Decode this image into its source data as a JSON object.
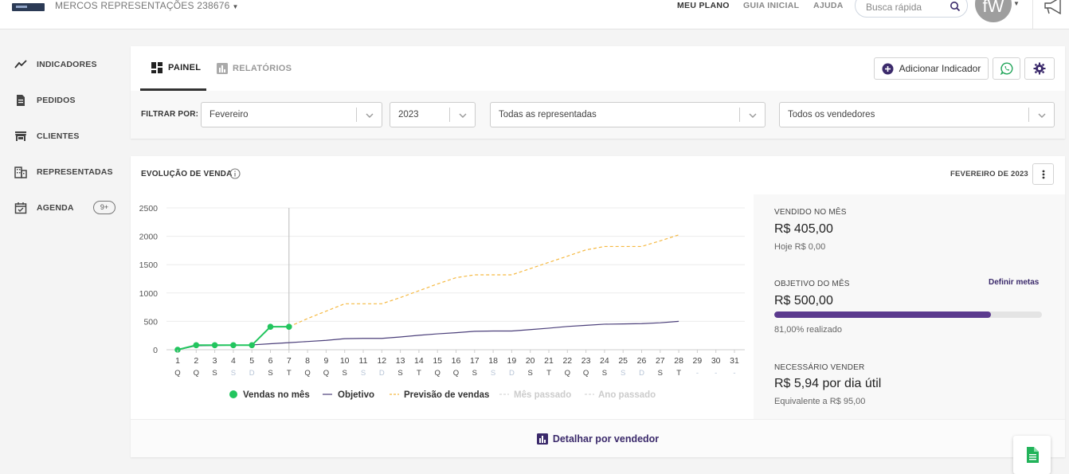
{
  "topbar": {
    "company": "MERCOS REPRESENTAÇÕES 238676",
    "nav": [
      "MEU PLANO",
      "GUIA INICIAL",
      "AJUDA"
    ],
    "search_placeholder": "Busca rápida",
    "avatar_initials": "fW"
  },
  "sidebar": {
    "items": [
      {
        "label": "INDICADORES",
        "icon": "trend-line-icon"
      },
      {
        "label": "PEDIDOS",
        "icon": "document-icon"
      },
      {
        "label": "CLIENTES",
        "icon": "store-icon"
      },
      {
        "label": "REPRESENTADAS",
        "icon": "building-icon"
      },
      {
        "label": "AGENDA",
        "icon": "calendar-check-icon"
      }
    ],
    "agenda_badge": "9+"
  },
  "tabs": [
    {
      "label": "PAINEL",
      "active": true,
      "icon": "dashboard-icon"
    },
    {
      "label": "RELATÓRIOS",
      "active": false,
      "icon": "bar-chart-icon"
    }
  ],
  "actions": {
    "add_indicator": "Adicionar Indicador"
  },
  "filters": {
    "label": "FILTRAR POR:",
    "month": "Fevereiro",
    "year": "2023",
    "represented": "Todas as representadas",
    "sellers": "Todos os vendedores"
  },
  "chart_panel": {
    "title": "EVOLUÇÃO DE VENDA",
    "period": "FEVEREIRO DE 2023",
    "footer_link": "Detalhar por vendedor"
  },
  "colors": {
    "sales": "#22c55e",
    "objective": "#4b3f7a",
    "forecast": "#f5b942",
    "faded": "#d6d6d6",
    "accent": "#3b2a6b"
  },
  "chart_data": {
    "type": "line",
    "ylim": [
      0,
      2500
    ],
    "yticks": [
      "0",
      "500",
      "1000",
      "1500",
      "2000",
      "2500"
    ],
    "ytick_values": [
      0,
      500,
      1000,
      1500,
      2000,
      2500
    ],
    "days": [
      "1",
      "2",
      "3",
      "4",
      "5",
      "6",
      "7",
      "8",
      "9",
      "10",
      "11",
      "12",
      "13",
      "14",
      "15",
      "16",
      "17",
      "18",
      "19",
      "20",
      "21",
      "22",
      "23",
      "24",
      "25",
      "26",
      "27",
      "28",
      "29",
      "30",
      "31"
    ],
    "weekdays": [
      "Q",
      "Q",
      "S",
      "S",
      "D",
      "S",
      "T",
      "Q",
      "Q",
      "S",
      "S",
      "D",
      "S",
      "T",
      "Q",
      "Q",
      "S",
      "S",
      "D",
      "S",
      "T",
      "Q",
      "Q",
      "S",
      "S",
      "D",
      "S",
      "T",
      "-",
      "-",
      "-"
    ],
    "weekend": [
      false,
      false,
      false,
      true,
      true,
      false,
      false,
      false,
      false,
      false,
      true,
      true,
      false,
      false,
      false,
      false,
      false,
      true,
      true,
      false,
      false,
      false,
      false,
      false,
      true,
      true,
      false,
      false,
      true,
      true,
      true
    ],
    "current_day": 7,
    "series": [
      {
        "name": "Vendas no mês",
        "style": "line-dots",
        "x": [
          1,
          2,
          3,
          4,
          5,
          6,
          7
        ],
        "values": [
          0,
          80,
          80,
          80,
          80,
          405,
          405
        ]
      },
      {
        "name": "Objetivo",
        "style": "solid",
        "x": [
          1,
          2,
          3,
          4,
          5,
          6,
          7,
          8,
          9,
          10,
          11,
          12,
          13,
          14,
          15,
          16,
          17,
          18,
          19,
          20,
          21,
          22,
          23,
          24,
          25,
          26,
          27,
          28
        ],
        "values": [
          0,
          70,
          75,
          80,
          85,
          105,
          125,
          145,
          165,
          195,
          200,
          200,
          225,
          255,
          280,
          300,
          325,
          330,
          330,
          355,
          380,
          410,
          430,
          450,
          455,
          460,
          475,
          500
        ]
      },
      {
        "name": "Previsão de vendas",
        "style": "dashed",
        "x": [
          7,
          8,
          9,
          10,
          11,
          12,
          13,
          14,
          15,
          16,
          17,
          18,
          19,
          20,
          21,
          22,
          23,
          24,
          25,
          26,
          27,
          28
        ],
        "values": [
          405,
          550,
          680,
          810,
          810,
          810,
          920,
          1040,
          1160,
          1270,
          1320,
          1320,
          1320,
          1430,
          1540,
          1650,
          1760,
          1820,
          1820,
          1820,
          1920,
          2025
        ]
      },
      {
        "name": "Mês passado",
        "style": "faded",
        "x": [],
        "values": []
      },
      {
        "name": "Ano passado",
        "style": "faded",
        "x": [],
        "values": []
      }
    ]
  },
  "stats": {
    "sold_label": "VENDIDO NO MÊS",
    "sold_value": "R$ 405,00",
    "today": "Hoje R$ 0,00",
    "objective_label": "OBJETIVO DO MÊS",
    "define_goals": "Definir metas",
    "objective_value": "R$ 500,00",
    "progress_percent": 81,
    "progress_text": "81,00% realizado",
    "needed_label": "NECESSÁRIO VENDER",
    "needed_value": "R$ 5,94 por dia útil",
    "equivalent": "Equivalente a R$ 95,00"
  }
}
